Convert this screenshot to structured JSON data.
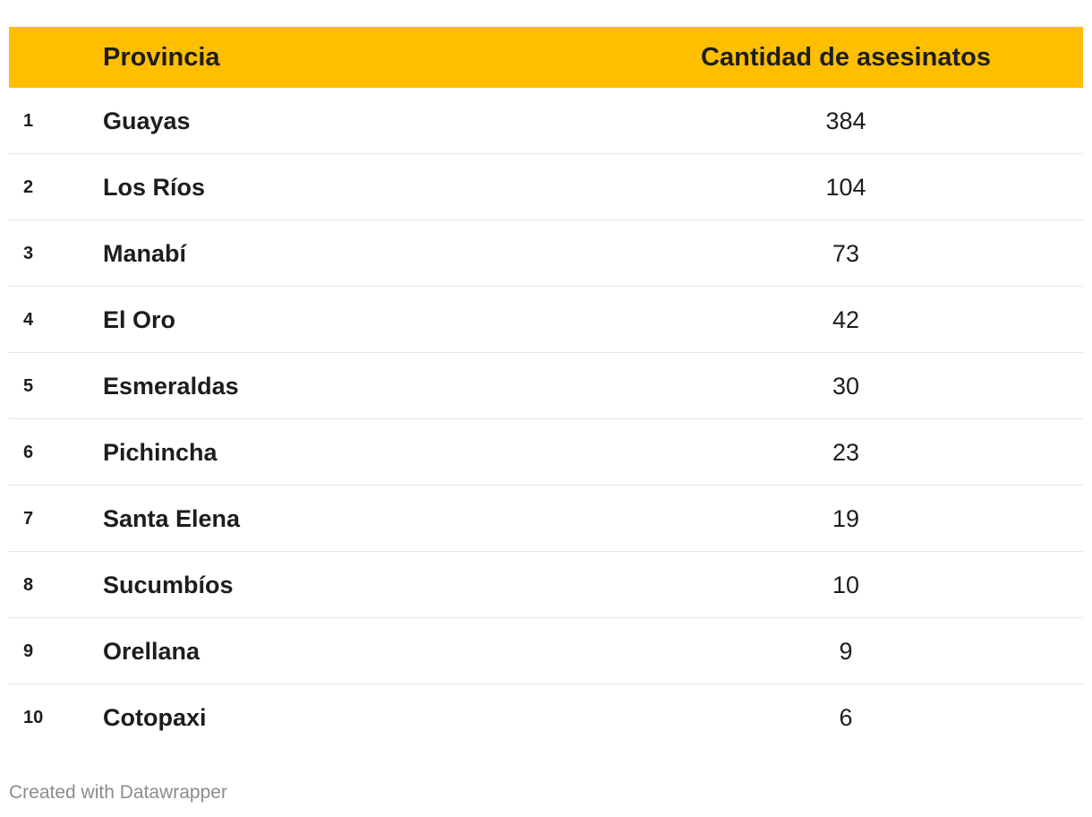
{
  "table": {
    "header": {
      "rank": "",
      "province": "Provincia",
      "count": "Cantidad de asesinatos"
    },
    "header_color": "#FFBF00"
  },
  "chart_data": {
    "type": "table",
    "columns": [
      "",
      "Provincia",
      "Cantidad de asesinatos"
    ],
    "rows": [
      {
        "rank": "1",
        "province": "Guayas",
        "value": 384
      },
      {
        "rank": "2",
        "province": "Los Ríos",
        "value": 104
      },
      {
        "rank": "3",
        "province": "Manabí",
        "value": 73
      },
      {
        "rank": "4",
        "province": "El Oro",
        "value": 42
      },
      {
        "rank": "5",
        "province": "Esmeraldas",
        "value": 30
      },
      {
        "rank": "6",
        "province": "Pichincha",
        "value": 23
      },
      {
        "rank": "7",
        "province": "Santa Elena",
        "value": 19
      },
      {
        "rank": "8",
        "province": "Sucumbíos",
        "value": 10
      },
      {
        "rank": "9",
        "province": "Orellana",
        "value": 9
      },
      {
        "rank": "10",
        "province": "Cotopaxi",
        "value": 6
      }
    ]
  },
  "footer": {
    "credit": "Created with Datawrapper"
  }
}
